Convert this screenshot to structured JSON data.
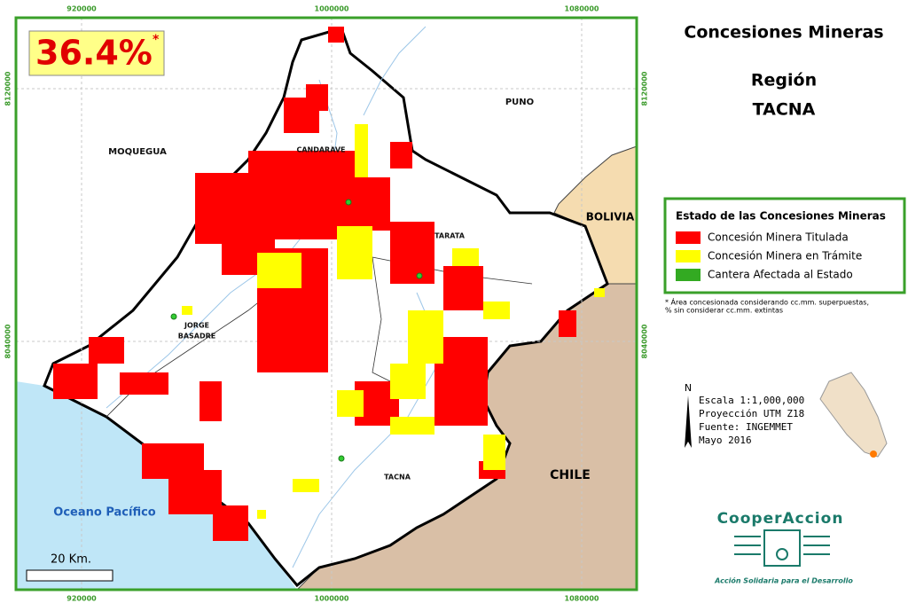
{
  "map": {
    "headline": {
      "value": "36.4%",
      "mark": "*"
    },
    "coords": {
      "top": [
        "920000",
        "1000000",
        "1080000"
      ],
      "bottom": [
        "920000",
        "1000000",
        "1080000"
      ],
      "left": [
        "8120000",
        "8040000"
      ],
      "right": [
        "8120000",
        "8040000"
      ]
    },
    "places": {
      "moquegua": "MOQUEGUA",
      "puno": "PUNO",
      "bolivia": "BOLIVIA",
      "chile": "CHILE",
      "candarave": "CANDARAVE",
      "tarata": "TARATA",
      "jorge": "JORGE",
      "basadre": "BASADRE",
      "tacna": "TACNA",
      "ocean": "Oceano Pacífico"
    },
    "scale_bar": "20 Km."
  },
  "title": {
    "line1": "Concesiones Mineras",
    "line2": "Región",
    "line3": "TACNA"
  },
  "legend": {
    "title": "Estado de las Concesiones Mineras",
    "items": [
      {
        "label": "Concesión Minera Titulada",
        "color": "#ff0000"
      },
      {
        "label": "Concesión Minera en Trámite",
        "color": "#ffff00"
      },
      {
        "label": "Cantera Afectada al Estado",
        "color": "#33aa22"
      }
    ]
  },
  "footnote": {
    "line1": "* Área concesionada considerando cc.mm. superpuestas,",
    "line2": "% sin considerar cc.mm. extintas"
  },
  "info": {
    "north": "N",
    "lines": [
      "Escala 1:1,000,000",
      "Proyección UTM Z18",
      "Fuente: INGEMMET",
      "Mayo 2016"
    ]
  },
  "logo": {
    "name": "CooperAccion",
    "tagline": "Acción Solidaria para el Desarrollo"
  }
}
